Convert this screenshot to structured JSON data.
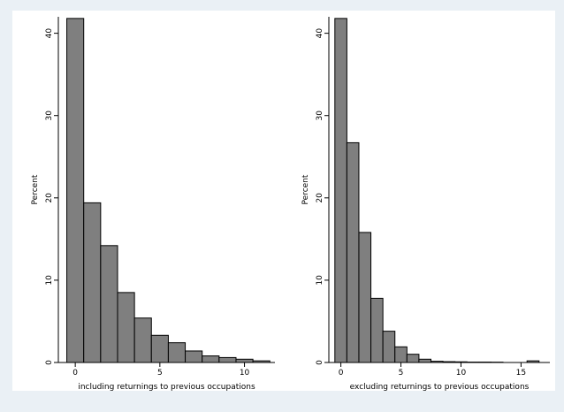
{
  "colors": {
    "background": "#eaf0f5",
    "panel": "#ffffff",
    "bar_fill": "#7f7f7f",
    "bar_stroke": "#000000"
  },
  "chart_data": [
    {
      "type": "bar",
      "title": "",
      "xlabel": "including returnings to previous occupations",
      "ylabel": "Percent",
      "xlim": [
        -1,
        11.8
      ],
      "ylim": [
        0,
        42
      ],
      "x_ticks": [
        0,
        5,
        10
      ],
      "y_ticks": [
        0,
        10,
        20,
        30,
        40
      ],
      "bin_width": 1,
      "bins": [
        0,
        1,
        2,
        3,
        4,
        5,
        6,
        7,
        8,
        9,
        10,
        11
      ],
      "values": [
        41.8,
        19.4,
        14.2,
        8.5,
        5.4,
        3.3,
        2.4,
        1.4,
        0.8,
        0.6,
        0.4,
        0.2
      ],
      "grid": false,
      "legend": "none"
    },
    {
      "type": "bar",
      "title": "",
      "xlabel": "excluding returnings to previous occupations",
      "ylabel": "Percent",
      "xlim": [
        -1,
        17.4
      ],
      "ylim": [
        0,
        42
      ],
      "x_ticks": [
        0,
        5,
        10,
        15
      ],
      "y_ticks": [
        0,
        10,
        20,
        30,
        40
      ],
      "bin_width": 1,
      "bins": [
        0,
        1,
        2,
        3,
        4,
        5,
        6,
        7,
        8,
        9,
        10,
        11,
        12,
        13,
        14,
        15,
        16
      ],
      "values": [
        41.8,
        26.7,
        15.8,
        7.8,
        3.8,
        1.9,
        1.0,
        0.4,
        0.15,
        0.1,
        0.08,
        0.05,
        0.05,
        0.04,
        0,
        0,
        0.2
      ],
      "grid": false,
      "legend": "none"
    }
  ]
}
